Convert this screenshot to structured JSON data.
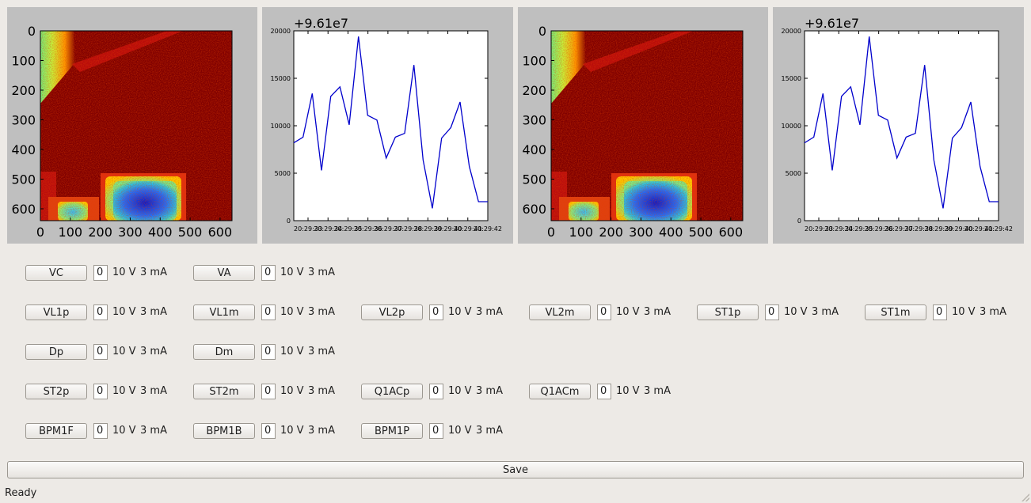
{
  "heatmaps": [
    {
      "name": "heatmap-1",
      "x_ticks": [
        "0",
        "100",
        "200",
        "300",
        "400",
        "500",
        "600"
      ],
      "y_ticks": [
        "0",
        "100",
        "200",
        "300",
        "400",
        "500",
        "600"
      ]
    },
    {
      "name": "heatmap-2",
      "x_ticks": [
        "0",
        "100",
        "200",
        "300",
        "400",
        "500",
        "600"
      ],
      "y_ticks": [
        "0",
        "100",
        "200",
        "300",
        "400",
        "500",
        "600"
      ]
    }
  ],
  "chart_data": [
    {
      "type": "line",
      "offset_label": "+9.61e7",
      "y_ticks": [
        "0",
        "5000",
        "10000",
        "15000",
        "20000"
      ],
      "x_tick_labels": [
        "20:29:33",
        "20:29:34",
        "20:29:35",
        "20:29:36",
        "20:29:37",
        "20:29:38",
        "20:29:39",
        "20:29:40",
        "20:29:41",
        "20:29:42"
      ],
      "ylim": [
        0,
        20000
      ],
      "color": "#0000cc",
      "series": [
        {
          "values": [
            8200,
            8800,
            13400,
            5300,
            13100,
            14100,
            10100,
            19400,
            11100,
            10600,
            6600,
            8800,
            9200,
            16400,
            6400,
            1300,
            8700,
            9800,
            12500,
            5700,
            2000,
            2000
          ]
        }
      ]
    },
    {
      "type": "line",
      "offset_label": "+9.61e7",
      "y_ticks": [
        "0",
        "5000",
        "10000",
        "15000",
        "20000"
      ],
      "x_tick_labels": [
        "20:29:33",
        "20:29:34",
        "20:29:35",
        "20:29:36",
        "20:29:37",
        "20:29:38",
        "20:29:39",
        "20:29:40",
        "20:29:41",
        "20:29:42"
      ],
      "ylim": [
        0,
        20000
      ],
      "color": "#0000cc",
      "series": [
        {
          "values": [
            8200,
            8800,
            13400,
            5300,
            13100,
            14100,
            10100,
            19400,
            11100,
            10600,
            6600,
            8800,
            9200,
            16400,
            6400,
            1300,
            8700,
            9800,
            12500,
            5700,
            2000,
            2000
          ]
        }
      ]
    }
  ],
  "controls": [
    [
      {
        "label": "VC",
        "value": "0",
        "voltage": "10 V",
        "current": "3 mA"
      },
      {
        "label": "VA",
        "value": "0",
        "voltage": "10 V",
        "current": "3 mA"
      }
    ],
    [
      {
        "label": "VL1p",
        "value": "0",
        "voltage": "10 V",
        "current": "3 mA"
      },
      {
        "label": "VL1m",
        "value": "0",
        "voltage": "10 V",
        "current": "3 mA"
      },
      {
        "label": "VL2p",
        "value": "0",
        "voltage": "10 V",
        "current": "3 mA"
      },
      {
        "label": "VL2m",
        "value": "0",
        "voltage": "10 V",
        "current": "3 mA"
      },
      {
        "label": "ST1p",
        "value": "0",
        "voltage": "10 V",
        "current": "3 mA"
      },
      {
        "label": "ST1m",
        "value": "0",
        "voltage": "10 V",
        "current": "3 mA"
      }
    ],
    [
      {
        "label": "Dp",
        "value": "0",
        "voltage": "10 V",
        "current": "3 mA"
      },
      {
        "label": "Dm",
        "value": "0",
        "voltage": "10 V",
        "current": "3 mA"
      }
    ],
    [
      {
        "label": "ST2p",
        "value": "0",
        "voltage": "10 V",
        "current": "3 mA"
      },
      {
        "label": "ST2m",
        "value": "0",
        "voltage": "10 V",
        "current": "3 mA"
      },
      {
        "label": "Q1ACp",
        "value": "0",
        "voltage": "10 V",
        "current": "3 mA"
      },
      {
        "label": "Q1ACm",
        "value": "0",
        "voltage": "10 V",
        "current": "3 mA"
      }
    ],
    [
      {
        "label": "BPM1F",
        "value": "0",
        "voltage": "10 V",
        "current": "3 mA"
      },
      {
        "label": "BPM1B",
        "value": "0",
        "voltage": "10 V",
        "current": "3 mA"
      },
      {
        "label": "BPM1P",
        "value": "0",
        "voltage": "10 V",
        "current": "3 mA"
      }
    ]
  ],
  "save_label": "Save",
  "status_text": "Ready"
}
